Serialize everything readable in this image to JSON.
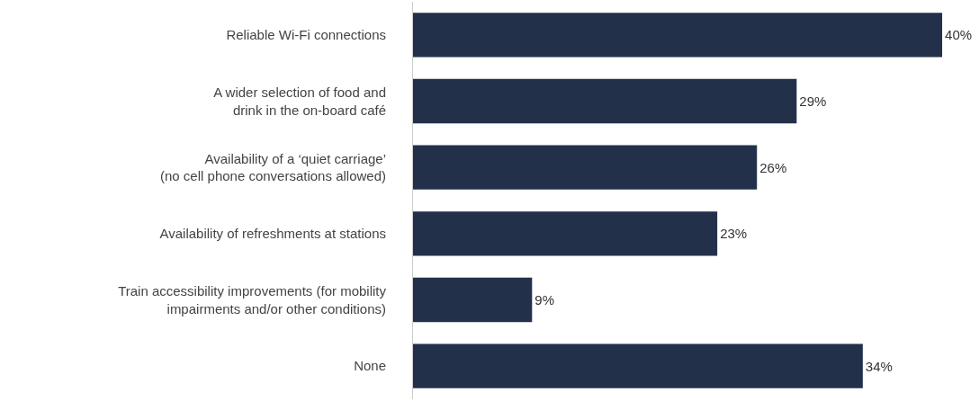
{
  "chart_data": {
    "type": "bar",
    "orientation": "horizontal",
    "categories": [
      "Reliable Wi-Fi connections",
      "A wider selection of food and\ndrink in the on-board café",
      "Availability of a ‘quiet carriage’\n(no cell phone conversations allowed)",
      "Availability of refreshments at stations",
      "Train accessibility improvements (for mobility\nimpairments and/or other conditions)",
      "None"
    ],
    "values": [
      40,
      29,
      26,
      23,
      9,
      34
    ],
    "value_labels": [
      "40%",
      "29%",
      "26%",
      "23%",
      "9%",
      "34%"
    ],
    "color": "#22304a",
    "tick_labels": "y"
  }
}
